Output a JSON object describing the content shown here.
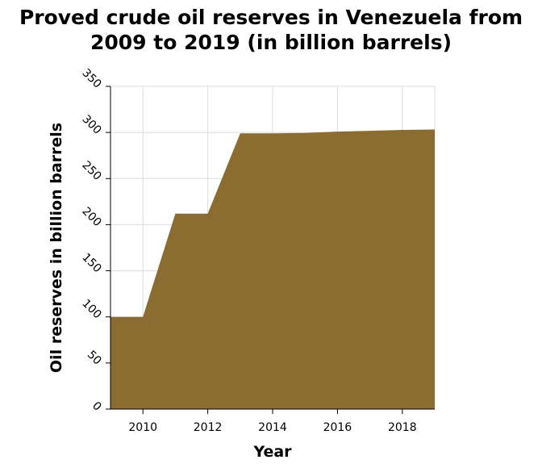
{
  "chart_data": {
    "type": "area",
    "title_lines": [
      "Proved crude oil reserves in Venezuela from",
      "2009 to 2019 (in billion barrels)"
    ],
    "xlabel": "Year",
    "ylabel": "Oil reserves in billion barrels",
    "x": [
      2009,
      2010,
      2011,
      2012,
      2013,
      2014,
      2015,
      2016,
      2017,
      2018,
      2019
    ],
    "series": [
      {
        "values": [
          100,
          100,
          212,
          212,
          299,
          299,
          299.5,
          300.9,
          301.8,
          302.8,
          303.2
        ]
      }
    ],
    "xlim": [
      2009,
      2019
    ],
    "ylim": [
      0,
      350
    ],
    "xticks": [
      2010,
      2012,
      2014,
      2016,
      2018
    ],
    "yticks": [
      0,
      50,
      100,
      150,
      200,
      250,
      300,
      350
    ],
    "grid": true,
    "fill_color": "#8b6d32",
    "grid_color": "#dcdcdc"
  }
}
